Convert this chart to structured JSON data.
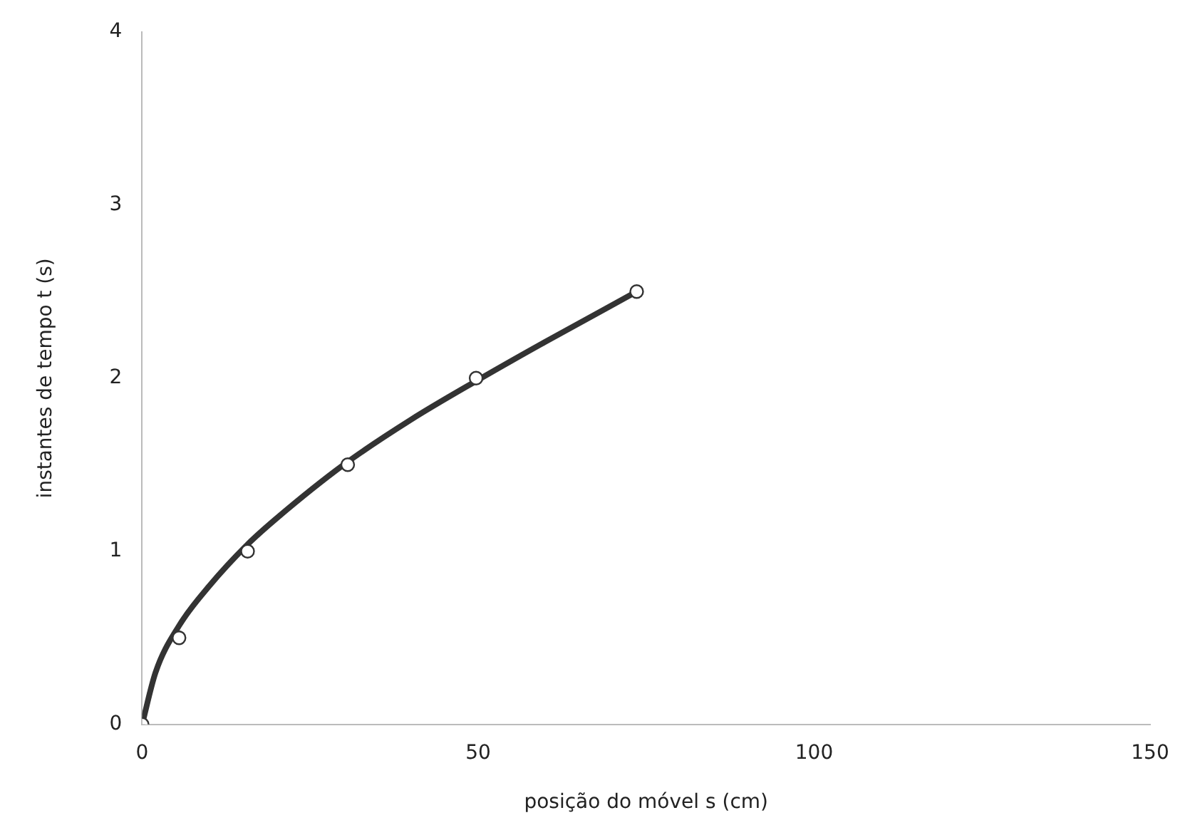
{
  "chart_data": {
    "type": "scatter",
    "xlabel": "posição do móvel s (cm)",
    "ylabel": "instantes de tempo t (s)",
    "xlim": [
      0,
      150
    ],
    "xticks": [
      0,
      50,
      100,
      150
    ],
    "ylim": [
      0,
      4
    ],
    "yticks": [
      0,
      1,
      2,
      3,
      4
    ],
    "grid": false,
    "legend": false,
    "marker": "circle",
    "series": [
      {
        "type": "line",
        "color": "#333333",
        "marker": "none",
        "line_style": "solid",
        "x": [
          0,
          2,
          5.5,
          10,
          15.7,
          20,
          30,
          40,
          50,
          60,
          73.6
        ],
        "values": [
          0,
          0.3,
          0.57,
          0.8,
          1.04,
          1.19,
          1.5,
          1.76,
          1.99,
          2.21,
          2.5
        ]
      },
      {
        "color": "#333333",
        "x": [
          0,
          5.5,
          15.7,
          30.6,
          49.7,
          73.6
        ],
        "values": [
          0,
          0.5,
          1,
          1.5,
          2,
          2.5
        ]
      }
    ]
  }
}
